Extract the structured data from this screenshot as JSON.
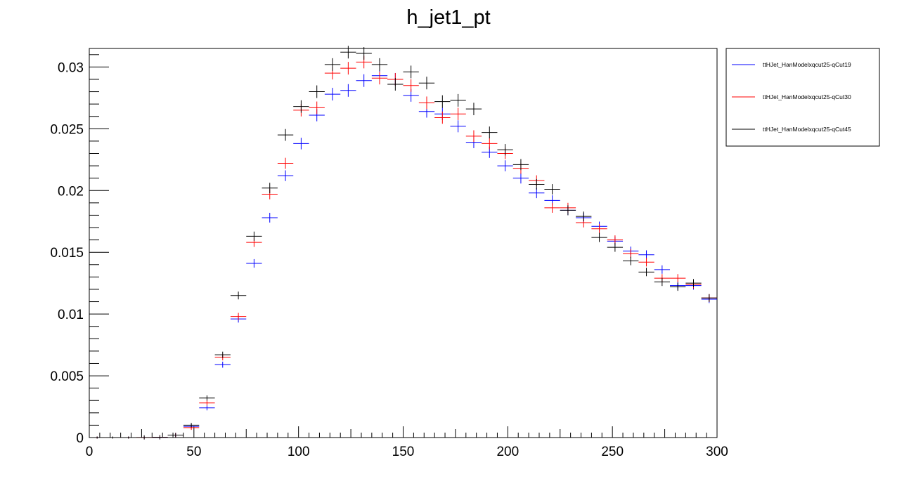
{
  "chart_data": {
    "type": "scatter",
    "title": "h_jet1_pt",
    "xlabel": "",
    "ylabel": "",
    "xlim": [
      0,
      300
    ],
    "ylim": [
      0,
      0.0315
    ],
    "x_tick_labels": [
      "0",
      "50",
      "100",
      "150",
      "200",
      "250",
      "300"
    ],
    "y_tick_labels": [
      "0",
      "0.005",
      "0.01",
      "0.015",
      "0.02",
      "0.025",
      "0.03"
    ],
    "grid": false,
    "legend_position": "outside-right-top",
    "bin_width": 7.5,
    "x": [
      3.75,
      11.25,
      18.75,
      26.25,
      33.75,
      41.25,
      48.75,
      56.25,
      63.75,
      71.25,
      78.75,
      86.25,
      93.75,
      101.25,
      108.75,
      116.25,
      123.75,
      131.25,
      138.75,
      146.25,
      153.75,
      161.25,
      168.75,
      176.25,
      183.75,
      191.25,
      198.75,
      206.25,
      213.75,
      221.25,
      228.75,
      236.25,
      243.75,
      251.25,
      258.75,
      266.25,
      273.75,
      281.25,
      288.75,
      296.25
    ],
    "series": [
      {
        "name": "ttHJet_HanModelxqcut25-qCut19",
        "color": "#0000ff",
        "values": [
          0,
          0,
          0,
          0,
          2e-05,
          0.0002,
          0.0009,
          0.0024,
          0.0059,
          0.0096,
          0.0141,
          0.0178,
          0.0212,
          0.0238,
          0.0261,
          0.0278,
          0.0281,
          0.0289,
          0.0293,
          0.029,
          0.0277,
          0.0264,
          0.0262,
          0.0252,
          0.0239,
          0.0231,
          0.022,
          0.021,
          0.0198,
          0.0192,
          0.0184,
          0.0178,
          0.0171,
          0.0159,
          0.0151,
          0.0148,
          0.0136,
          0.0123,
          0.0123,
          0.0112
        ]
      },
      {
        "name": "ttHJet_HanModelxqcut25-qCut30",
        "color": "#ff0000",
        "values": [
          0,
          0,
          0,
          0,
          3e-05,
          0.0002,
          0.0008,
          0.0028,
          0.0065,
          0.0098,
          0.0158,
          0.0197,
          0.0222,
          0.0265,
          0.0267,
          0.0295,
          0.0299,
          0.0304,
          0.0291,
          0.029,
          0.0285,
          0.0271,
          0.0259,
          0.0262,
          0.0244,
          0.0238,
          0.023,
          0.0218,
          0.0208,
          0.0186,
          0.0186,
          0.0174,
          0.0169,
          0.016,
          0.0149,
          0.0142,
          0.0129,
          0.0129,
          0.0124,
          0.0113
        ]
      },
      {
        "name": "ttHJet_HanModelxqcut25-qCut45",
        "color": "#000000",
        "values": [
          0,
          0,
          0,
          1e-05,
          2e-05,
          0.0002,
          0.001,
          0.0032,
          0.0067,
          0.0115,
          0.0163,
          0.0202,
          0.0245,
          0.0268,
          0.028,
          0.0302,
          0.0312,
          0.0311,
          0.0302,
          0.0286,
          0.0296,
          0.0287,
          0.0272,
          0.0273,
          0.0266,
          0.0247,
          0.0233,
          0.0221,
          0.0205,
          0.0201,
          0.0184,
          0.0179,
          0.0162,
          0.0154,
          0.0143,
          0.0134,
          0.0126,
          0.0122,
          0.0125,
          0.0113
        ]
      }
    ]
  }
}
